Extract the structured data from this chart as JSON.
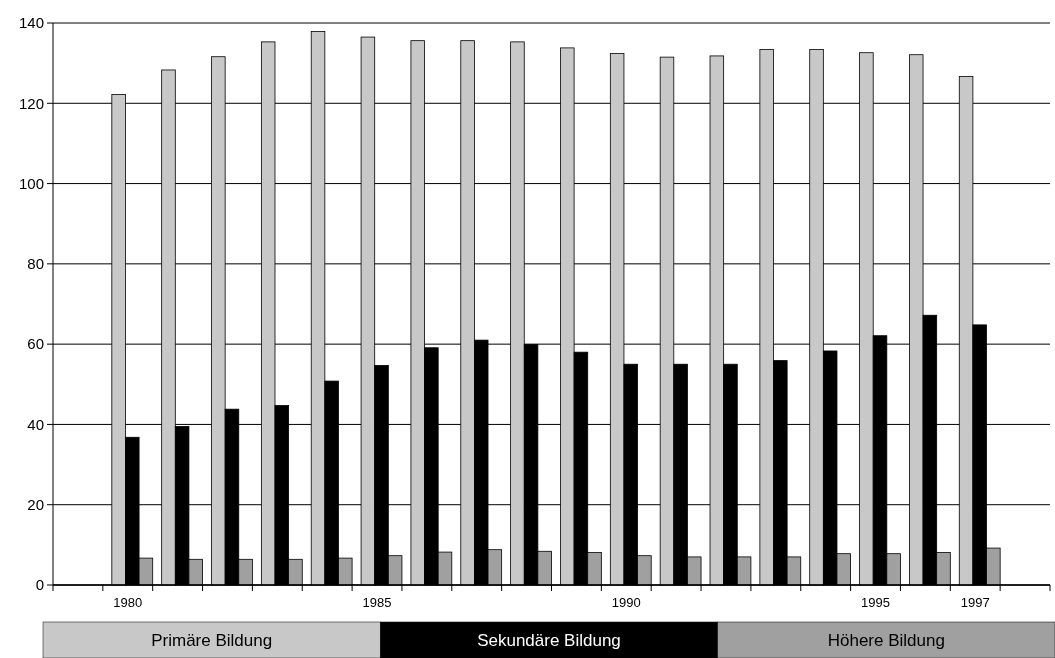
{
  "chart_data": {
    "type": "bar",
    "categories": [
      null,
      "1980",
      null,
      null,
      null,
      null,
      "1985",
      null,
      null,
      null,
      null,
      "1990",
      null,
      null,
      null,
      null,
      "1995",
      null,
      "1997",
      null
    ],
    "series": [
      {
        "name": "Primäre Bildung",
        "color": "#c8c8c8",
        "values": [
          null,
          122.2,
          128.3,
          131.6,
          135.3,
          137.9,
          136.5,
          135.6,
          135.6,
          135.3,
          133.8,
          132.4,
          131.5,
          131.8,
          133.4,
          133.4,
          132.6,
          132.1,
          126.7,
          null
        ]
      },
      {
        "name": "Sekundäre Bildung",
        "color": "#000000",
        "values": [
          null,
          36.8,
          39.5,
          43.8,
          44.7,
          50.8,
          54.7,
          59.1,
          61.0,
          59.9,
          58.0,
          55.0,
          55.0,
          55.0,
          55.9,
          58.3,
          62.1,
          67.2,
          64.8,
          null
        ]
      },
      {
        "name": "Höhere Bildung",
        "color": "#a0a0a0",
        "values": [
          null,
          6.7,
          6.4,
          6.4,
          6.4,
          6.7,
          7.3,
          8.2,
          8.8,
          8.4,
          8.1,
          7.3,
          7.0,
          7.0,
          7.0,
          7.8,
          7.8,
          8.1,
          9.2,
          null
        ]
      }
    ],
    "ylim": [
      0,
      140
    ],
    "yticks": [
      0,
      20,
      40,
      60,
      80,
      100,
      120,
      140
    ],
    "grid": "y",
    "legend": "bottom"
  }
}
